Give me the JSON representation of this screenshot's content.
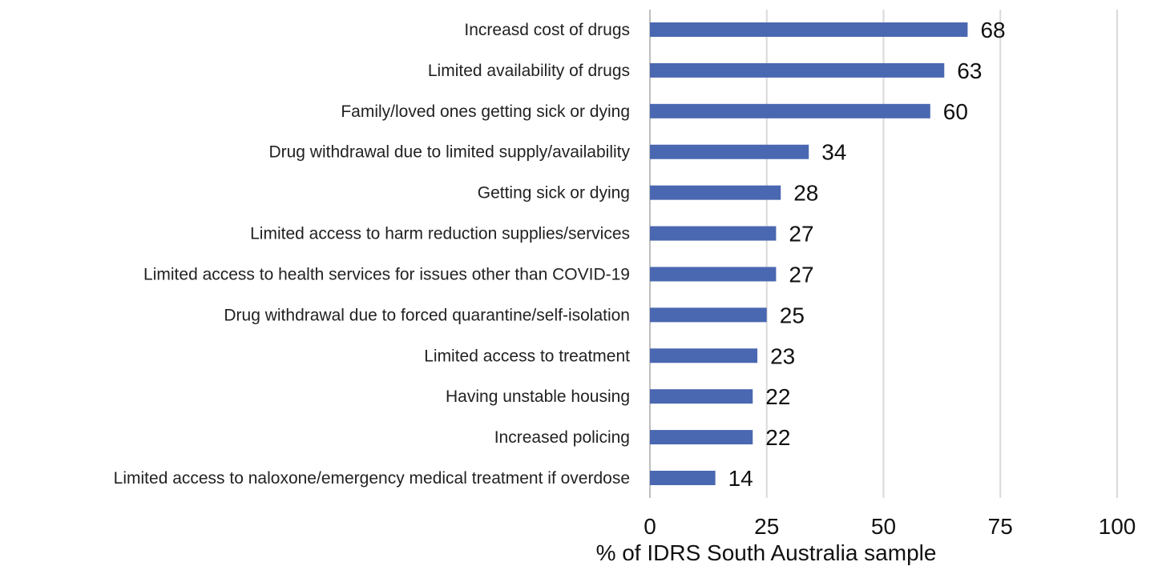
{
  "chart_data": {
    "type": "bar",
    "orientation": "horizontal",
    "title": "",
    "xlabel": "% of IDRS South Australia sample",
    "ylabel": "",
    "xlim": [
      0,
      100
    ],
    "xticks": [
      0,
      25,
      50,
      75,
      100
    ],
    "grid": true,
    "bar_color": "#4a67b1",
    "categories": [
      "Increasd cost of drugs",
      "Limited availability of drugs",
      "Family/loved ones getting sick or dying",
      "Drug withdrawal due to limited supply/availability",
      "Getting sick or dying",
      "Limited access to harm reduction supplies/services",
      "Limited access to health services for issues other than COVID-19",
      "Drug withdrawal due to forced quarantine/self-isolation",
      "Limited access to treatment",
      "Having unstable housing",
      "Increased policing",
      "Limited access to naloxone/emergency medical treatment if overdose"
    ],
    "values": [
      68,
      63,
      60,
      34,
      28,
      27,
      27,
      25,
      23,
      22,
      22,
      14
    ]
  }
}
